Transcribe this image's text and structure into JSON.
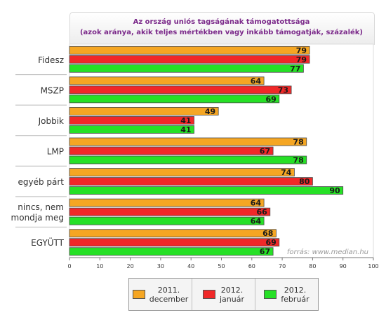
{
  "chart_data": {
    "type": "bar",
    "orientation": "horizontal",
    "title": "Az ország uniós tagságának támogatottsága",
    "subtitle": "(azok aránya, akik teljes mértékben vagy inkább támogatják, százalék)",
    "categories": [
      "Fidesz",
      "MSZP",
      "Jobbik",
      "LMP",
      "egyéb párt",
      "nincs, nem mondja meg",
      "EGYÜTT"
    ],
    "category_lines": [
      [
        "Fidesz"
      ],
      [
        "MSZP"
      ],
      [
        "Jobbik"
      ],
      [
        "LMP"
      ],
      [
        "egyéb párt"
      ],
      [
        "nincs, nem",
        "mondja meg"
      ],
      [
        "EGYÜTT"
      ]
    ],
    "series": [
      {
        "name": "2011. december",
        "name_lines": [
          "2011.",
          "december"
        ],
        "color": "#f5a623",
        "values": [
          79,
          64,
          49,
          78,
          74,
          64,
          68
        ]
      },
      {
        "name": "2012. január",
        "name_lines": [
          "2012.",
          "január"
        ],
        "color": "#f02828",
        "values": [
          79,
          73,
          41,
          67,
          80,
          66,
          69
        ]
      },
      {
        "name": "2012. február",
        "name_lines": [
          "2012.",
          "február"
        ],
        "color": "#26e026",
        "values": [
          77,
          69,
          41,
          78,
          90,
          64,
          67
        ]
      }
    ],
    "xlim": [
      0,
      100
    ],
    "xticks": [
      0,
      10,
      20,
      30,
      40,
      50,
      60,
      70,
      80,
      90,
      100
    ],
    "grid": false,
    "legend_position": "bottom",
    "source": "forrás: www.median.hu"
  }
}
